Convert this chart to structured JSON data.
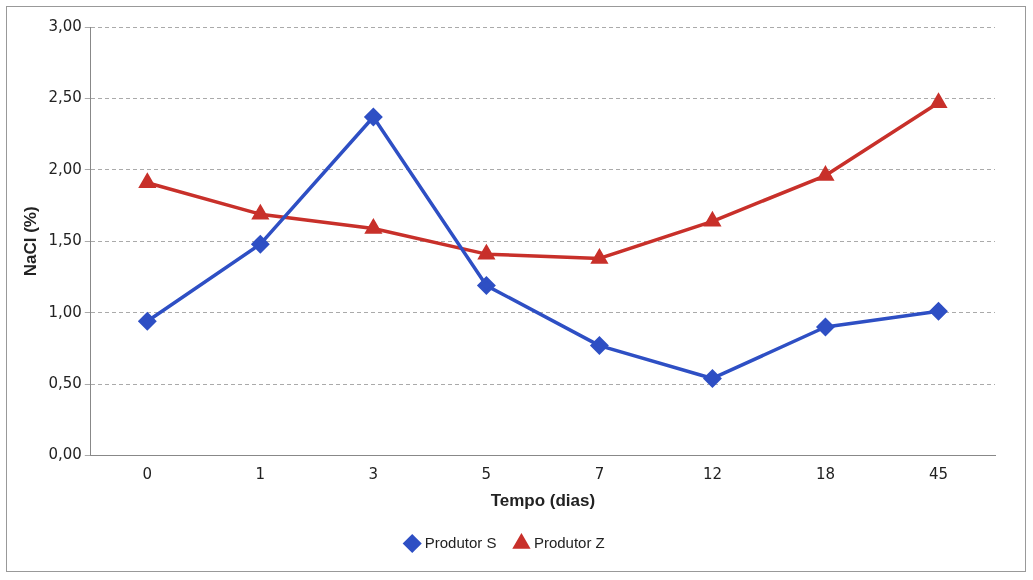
{
  "chart_data": {
    "type": "line",
    "xlabel": "Tempo (dias)",
    "ylabel": "NaCl (%)",
    "categories": [
      "0",
      "1",
      "3",
      "5",
      "7",
      "12",
      "18",
      "45"
    ],
    "series": [
      {
        "name": "Produtor S",
        "color": "#2e4fc4",
        "marker": "diamond",
        "values": [
          0.94,
          1.48,
          2.37,
          1.19,
          0.77,
          0.54,
          0.9,
          1.01
        ]
      },
      {
        "name": "Produtor Z",
        "color": "#c8302a",
        "marker": "triangle",
        "values": [
          1.91,
          1.69,
          1.59,
          1.41,
          1.38,
          1.64,
          1.96,
          2.47
        ]
      }
    ],
    "ylim": [
      0,
      3
    ],
    "yticks": [
      {
        "value": 0,
        "label": "0,00"
      },
      {
        "value": 0.5,
        "label": "0,50"
      },
      {
        "value": 1,
        "label": "1,00"
      },
      {
        "value": 1.5,
        "label": "1,50"
      },
      {
        "value": 2,
        "label": "2,00"
      },
      {
        "value": 2.5,
        "label": "2,50"
      },
      {
        "value": 3,
        "label": "3,00"
      }
    ],
    "grid": "y",
    "legend": "bottom"
  }
}
